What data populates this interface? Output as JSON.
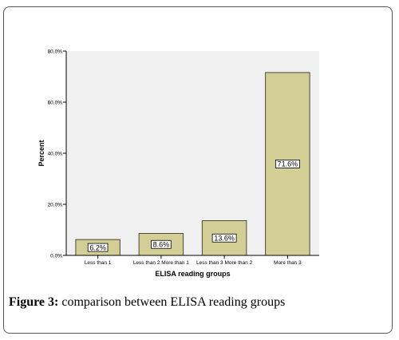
{
  "caption": {
    "label": "Figure 3:",
    "text": " comparison between ELISA reading groups"
  },
  "chart_data": {
    "type": "bar",
    "categories": [
      "Less than 1",
      "Less than 2 More than 1",
      "Less than 3 More than 2",
      "More than 3"
    ],
    "values": [
      6.2,
      8.6,
      13.6,
      71.6
    ],
    "data_labels": [
      "6.2%",
      "8.6%",
      "13.6%",
      "71.6%"
    ],
    "xlabel": "ELISA reading groups",
    "ylabel": "Percent",
    "ylim": [
      0,
      80
    ],
    "yticks": [
      0,
      20,
      40,
      60,
      80
    ],
    "ytick_labels": [
      "0.0%",
      "20.0%",
      "40.0%",
      "60.0%",
      "80.0%"
    ],
    "grid": false,
    "colors": {
      "bar_fill": "#d3cd96",
      "bar_stroke": "#4a4a3a",
      "plot_bg": "#f0f0f0"
    }
  }
}
